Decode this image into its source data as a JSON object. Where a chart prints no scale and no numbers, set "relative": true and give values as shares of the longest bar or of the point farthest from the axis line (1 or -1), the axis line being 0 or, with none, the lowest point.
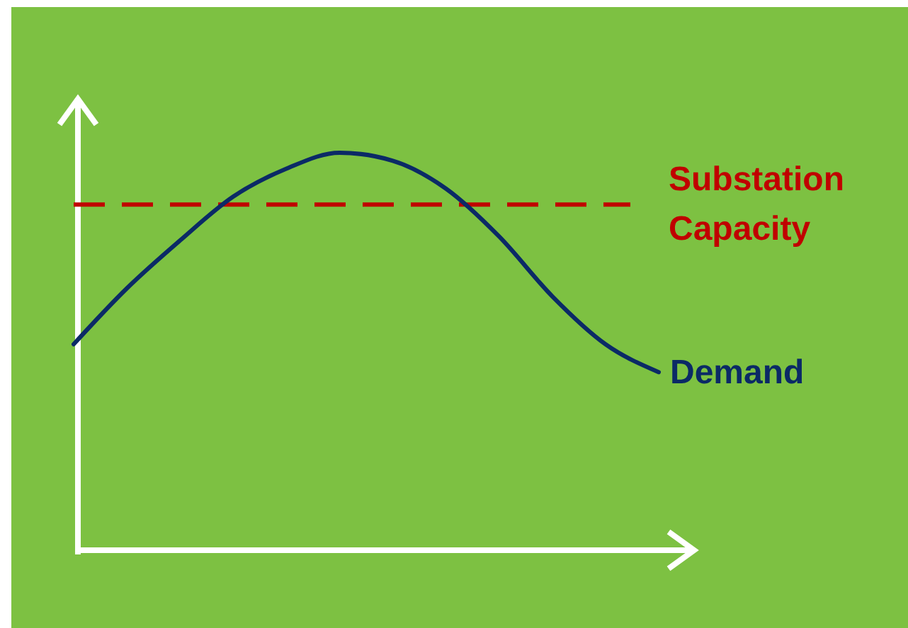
{
  "chart_data": {
    "type": "line",
    "relative": true,
    "categories": [
      null,
      null,
      null,
      null,
      null,
      null,
      null,
      null,
      null,
      null,
      null,
      null
    ],
    "series": [
      {
        "name": "Demand",
        "color": "#0b2a66",
        "values": [
          0.52,
          0.66,
          0.78,
          0.89,
          0.96,
          1.0,
          0.98,
          0.91,
          0.79,
          0.64,
          0.52,
          0.45
        ]
      }
    ],
    "ref_lines": [
      {
        "axis": "y",
        "value": 0.87,
        "label": "Substation Capacity",
        "color": "#c00000",
        "line_style": "dashed"
      }
    ],
    "grid": false,
    "marker": "none",
    "line_style": "solid"
  }
}
